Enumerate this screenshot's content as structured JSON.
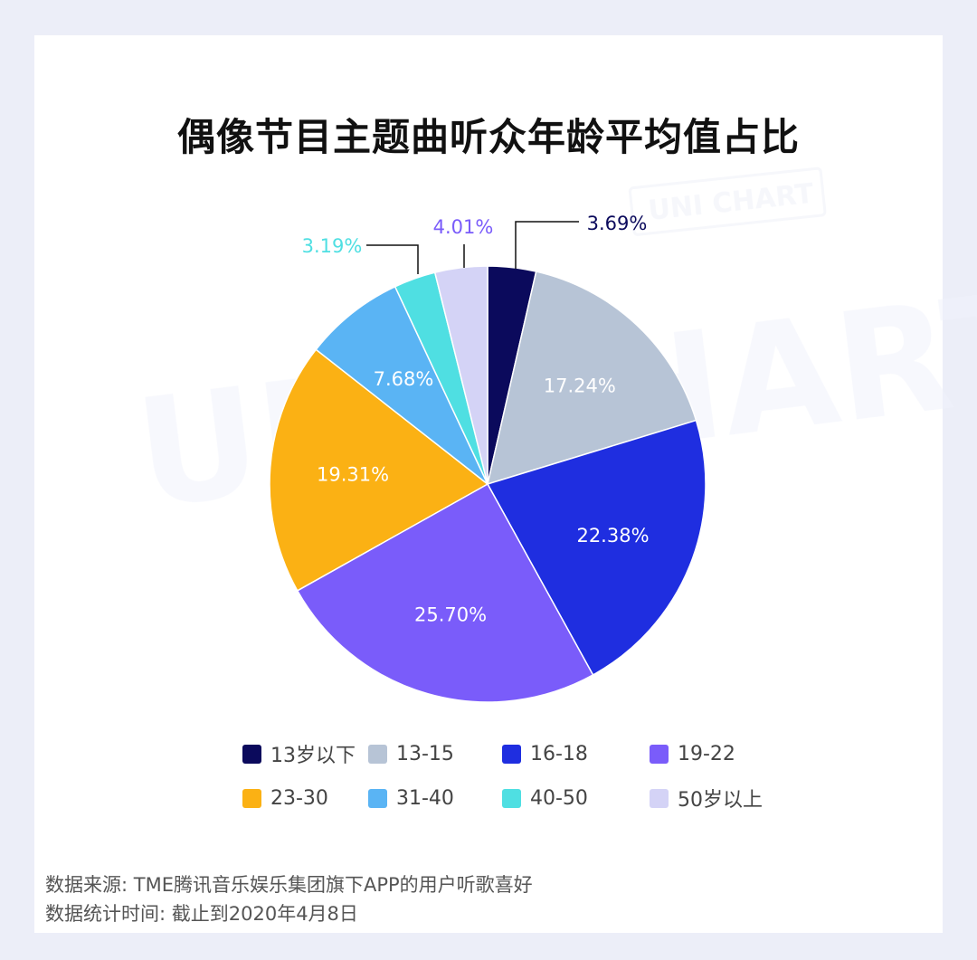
{
  "title": "偶像节目主题曲听众年龄平均值占比",
  "watermark": {
    "big": "UNI CHART",
    "stamp": "UNI CHART"
  },
  "chart_data": {
    "type": "pie",
    "title": "偶像节目主题曲听众年龄平均值占比",
    "start_angle_deg": 0,
    "direction": "clockwise",
    "slices": [
      {
        "label": "13岁以下",
        "value": 3.69,
        "display": "3.69%",
        "color": "#0b0a5c",
        "label_pos": "outside"
      },
      {
        "label": "13-15",
        "value": 17.24,
        "display": "17.24%",
        "color": "#b7c4d6",
        "label_pos": "inside"
      },
      {
        "label": "16-18",
        "value": 22.38,
        "display": "22.38%",
        "color": "#1f2ee0",
        "label_pos": "inside"
      },
      {
        "label": "19-22",
        "value": 25.7,
        "display": "25.70%",
        "color": "#7a5cfa",
        "label_pos": "inside"
      },
      {
        "label": "23-30",
        "value": 19.31,
        "display": "19.31%",
        "color": "#fbb114",
        "label_pos": "inside"
      },
      {
        "label": "31-40",
        "value": 7.68,
        "display": "7.68%",
        "color": "#5ab4f4",
        "label_pos": "inside"
      },
      {
        "label": "40-50",
        "value": 3.19,
        "display": "3.19%",
        "color": "#4fdfe2",
        "label_pos": "outside"
      },
      {
        "label": "50岁以上",
        "value": 4.01,
        "display": "4.01%",
        "color": "#d4d3f6",
        "label_pos": "outside"
      }
    ],
    "legend_position": "bottom"
  },
  "legend": [
    {
      "label": "13岁以下",
      "color": "#0b0a5c"
    },
    {
      "label": "13-15",
      "color": "#b7c4d6"
    },
    {
      "label": "16-18",
      "color": "#1f2ee0"
    },
    {
      "label": "19-22",
      "color": "#7a5cfa"
    },
    {
      "label": "23-30",
      "color": "#fbb114"
    },
    {
      "label": "31-40",
      "color": "#5ab4f4"
    },
    {
      "label": "40-50",
      "color": "#4fdfe2"
    },
    {
      "label": "50岁以上",
      "color": "#d4d3f6"
    }
  ],
  "source": {
    "line1": "数据来源: TME腾讯音乐娱乐集团旗下APP的用户听歌喜好",
    "line2": "数据统计时间: 截止到2020年4月8日"
  }
}
